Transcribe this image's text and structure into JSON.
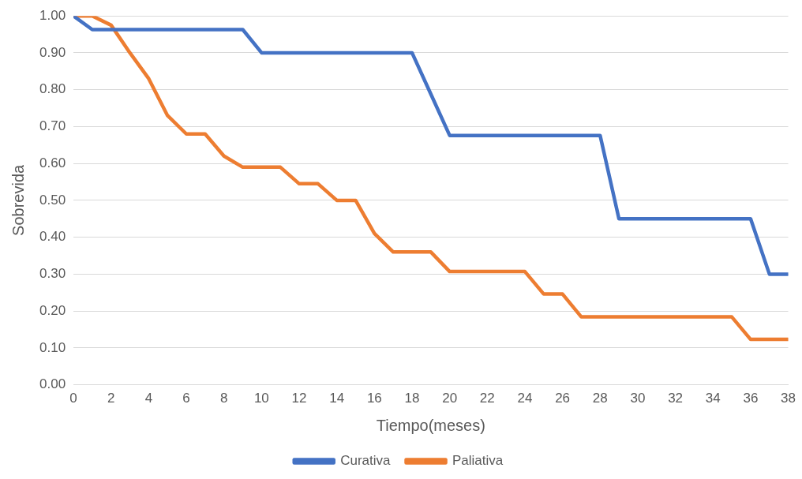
{
  "chart_data": {
    "type": "line",
    "xlabel": "Tiempo(meses)",
    "ylabel": "Sobrevida",
    "x": [
      0,
      1,
      2,
      3,
      4,
      5,
      6,
      7,
      8,
      9,
      10,
      11,
      12,
      13,
      14,
      15,
      16,
      17,
      18,
      19,
      20,
      21,
      22,
      23,
      24,
      25,
      26,
      27,
      28,
      29,
      30,
      31,
      32,
      33,
      34,
      35,
      36,
      37,
      38
    ],
    "xlim": [
      0,
      38
    ],
    "xticks": [
      0,
      2,
      4,
      6,
      8,
      10,
      12,
      14,
      16,
      18,
      20,
      22,
      24,
      26,
      28,
      30,
      32,
      34,
      36,
      38
    ],
    "series": [
      {
        "name": "Curativa",
        "color": "#4472c4",
        "values": [
          1.0,
          0.963,
          0.963,
          0.963,
          0.963,
          0.963,
          0.963,
          0.963,
          0.963,
          0.963,
          0.9,
          0.9,
          0.9,
          0.9,
          0.9,
          0.9,
          0.9,
          0.9,
          0.9,
          0.788,
          0.676,
          0.676,
          0.676,
          0.676,
          0.676,
          0.676,
          0.676,
          0.676,
          0.676,
          0.45,
          0.45,
          0.45,
          0.45,
          0.45,
          0.45,
          0.45,
          0.45,
          0.3,
          0.3
        ]
      },
      {
        "name": "Paliativa",
        "color": "#ed7d31",
        "values": [
          1.0,
          1.0,
          0.975,
          0.9,
          0.83,
          0.73,
          0.68,
          0.68,
          0.62,
          0.59,
          0.59,
          0.59,
          0.545,
          0.545,
          0.5,
          0.5,
          0.41,
          0.36,
          0.36,
          0.36,
          0.307,
          0.307,
          0.307,
          0.307,
          0.307,
          0.246,
          0.246,
          0.184,
          0.184,
          0.184,
          0.184,
          0.184,
          0.184,
          0.184,
          0.184,
          0.184,
          0.123,
          0.123,
          0.123
        ]
      }
    ],
    "ylim": [
      0,
      1
    ],
    "yticks": [
      {
        "value": 0,
        "label": "0.00"
      },
      {
        "value": 0.1,
        "label": "0.10"
      },
      {
        "value": 0.2,
        "label": "0.20"
      },
      {
        "value": 0.3,
        "label": "0.30"
      },
      {
        "value": 0.4,
        "label": "0.40"
      },
      {
        "value": 0.5,
        "label": "0.50"
      },
      {
        "value": 0.6,
        "label": "0.60"
      },
      {
        "value": 0.7,
        "label": "0.70"
      },
      {
        "value": 0.8,
        "label": "0.80"
      },
      {
        "value": 0.9,
        "label": "0.90"
      },
      {
        "value": 1,
        "label": "1.00"
      }
    ],
    "grid": "y",
    "legend": "bottom",
    "marker": "none",
    "line_style": "solid"
  }
}
